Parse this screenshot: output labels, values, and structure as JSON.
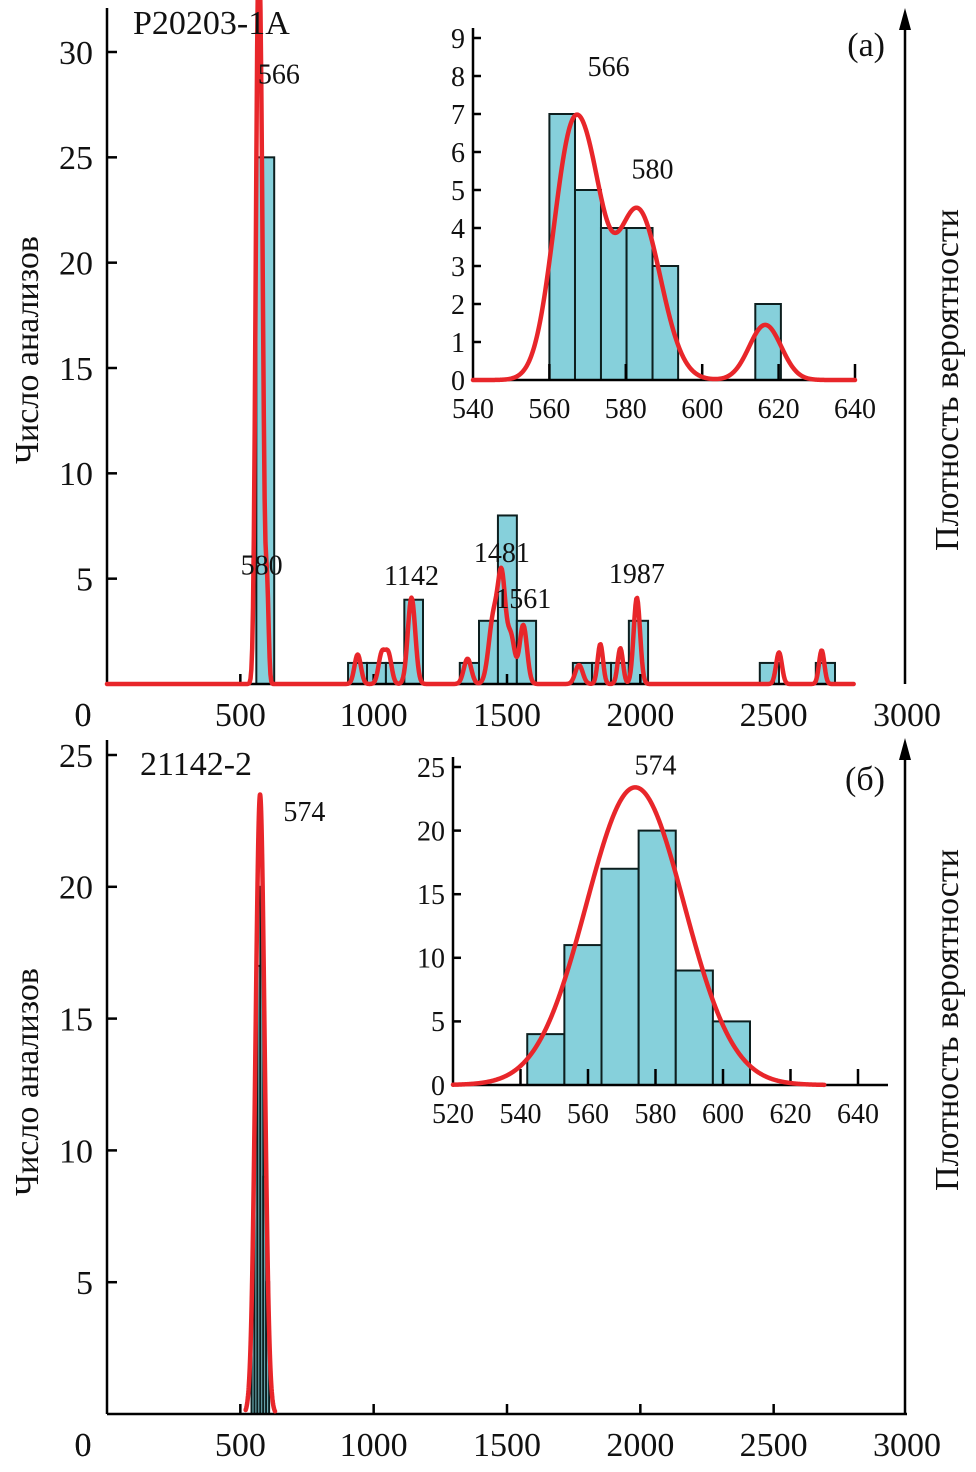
{
  "chart_data": [
    {
      "id": "a-main",
      "type": "bar",
      "panel_label": "",
      "sample": "P20203-1A",
      "xlabel": "",
      "ylabel": "Число анализов",
      "right_label": "Плотность вероятности",
      "xlim": [
        0,
        3000
      ],
      "ylim": [
        0,
        31
      ],
      "xticks": [
        0,
        500,
        1000,
        1500,
        2000,
        2500,
        3000
      ],
      "yticks": [
        5,
        10,
        15,
        20,
        25,
        30
      ],
      "ytick_zero_label": "0",
      "bins": [
        {
          "x0": 560,
          "x1": 627,
          "count": 25
        },
        {
          "x0": 904,
          "x1": 975,
          "count": 1
        },
        {
          "x0": 975,
          "x1": 1046,
          "count": 1
        },
        {
          "x0": 1046,
          "x1": 1115,
          "count": 1
        },
        {
          "x0": 1115,
          "x1": 1185,
          "count": 4
        },
        {
          "x0": 1323,
          "x1": 1395,
          "count": 1
        },
        {
          "x0": 1395,
          "x1": 1466,
          "count": 3
        },
        {
          "x0": 1466,
          "x1": 1537,
          "count": 8
        },
        {
          "x0": 1537,
          "x1": 1609,
          "count": 3
        },
        {
          "x0": 1747,
          "x1": 1819,
          "count": 1
        },
        {
          "x0": 1819,
          "x1": 1890,
          "count": 1
        },
        {
          "x0": 1890,
          "x1": 1957,
          "count": 1
        },
        {
          "x0": 1957,
          "x1": 2029,
          "count": 3
        },
        {
          "x0": 2448,
          "x1": 2520,
          "count": 1
        },
        {
          "x0": 2658,
          "x1": 2730,
          "count": 1
        }
      ],
      "kde_peaks": [
        {
          "x": 566,
          "y": 29.8,
          "w": 9
        },
        {
          "x": 580,
          "y": 17.5,
          "w": 8
        },
        {
          "x": 600,
          "y": 4.6,
          "w": 6
        },
        {
          "x": 940,
          "y": 1.4,
          "w": 12
        },
        {
          "x": 1030,
          "y": 1.4,
          "w": 12
        },
        {
          "x": 1055,
          "y": 1.4,
          "w": 12
        },
        {
          "x": 1142,
          "y": 4.1,
          "w": 14
        },
        {
          "x": 1352,
          "y": 1.2,
          "w": 14
        },
        {
          "x": 1450,
          "y": 3.2,
          "w": 18
        },
        {
          "x": 1481,
          "y": 4.6,
          "w": 14
        },
        {
          "x": 1515,
          "y": 2.2,
          "w": 14
        },
        {
          "x": 1561,
          "y": 2.8,
          "w": 14
        },
        {
          "x": 1770,
          "y": 0.9,
          "w": 14
        },
        {
          "x": 1850,
          "y": 1.9,
          "w": 10
        },
        {
          "x": 1925,
          "y": 1.7,
          "w": 10
        },
        {
          "x": 1987,
          "y": 4.1,
          "w": 12
        },
        {
          "x": 2520,
          "y": 1.5,
          "w": 11
        },
        {
          "x": 2680,
          "y": 1.6,
          "w": 10
        }
      ],
      "kde_range": [
        0,
        2800
      ],
      "annotations": [
        {
          "text": "566",
          "x": 566,
          "y": 28.5
        },
        {
          "text": "580",
          "x": 580,
          "y": 5.2
        },
        {
          "text": "1142",
          "x": 1142,
          "y": 4.7
        },
        {
          "text": "1481",
          "x": 1481,
          "y": 5.8
        },
        {
          "text": "1561",
          "x": 1561,
          "y": 3.6
        },
        {
          "text": "1987",
          "x": 1987,
          "y": 4.8
        }
      ]
    },
    {
      "id": "a-inset",
      "type": "bar",
      "panel_label": "(a)",
      "xlim": [
        540,
        640
      ],
      "ylim": [
        0,
        9
      ],
      "xticks": [
        540,
        560,
        580,
        600,
        620,
        640
      ],
      "yticks": [
        0,
        1,
        2,
        3,
        4,
        5,
        6,
        7,
        8,
        9
      ],
      "bins": [
        {
          "x0": 560,
          "x1": 566.7,
          "count": 7
        },
        {
          "x0": 566.7,
          "x1": 573.5,
          "count": 5
        },
        {
          "x0": 573.5,
          "x1": 580.2,
          "count": 4
        },
        {
          "x0": 580.2,
          "x1": 587,
          "count": 4
        },
        {
          "x0": 587,
          "x1": 593.7,
          "count": 3
        },
        {
          "x0": 593.7,
          "x1": 600.4,
          "count": 0
        },
        {
          "x0": 600.4,
          "x1": 607.1,
          "count": 0
        },
        {
          "x0": 607.1,
          "x1": 613.9,
          "count": 0
        },
        {
          "x0": 613.9,
          "x1": 620.6,
          "count": 2
        }
      ],
      "kde_peaks": [
        {
          "x": 566,
          "y": 6.4,
          "w": 5.0
        },
        {
          "x": 572,
          "y": 1.6,
          "w": 3.5
        },
        {
          "x": 583,
          "y": 4.5,
          "w": 6.0
        },
        {
          "x": 616.5,
          "y": 1.45,
          "w": 4.2
        }
      ],
      "kde_range": [
        540,
        640
      ],
      "annotations": [
        {
          "text": "566",
          "x": 575.5,
          "y": 8.0
        },
        {
          "text": "580",
          "x": 587,
          "y": 5.3
        }
      ]
    },
    {
      "id": "b-main",
      "type": "bar",
      "panel_label": "",
      "sample": "21142-2",
      "xlabel": "",
      "ylabel": "Число анализов",
      "right_label": "Плотность вероятности",
      "xlim": [
        0,
        3000
      ],
      "ylim": [
        0,
        25.5
      ],
      "xticks": [
        0,
        500,
        1000,
        1500,
        2000,
        2500,
        3000
      ],
      "yticks": [
        5,
        10,
        15,
        20,
        25
      ],
      "ytick_zero_label": "0",
      "bins": [
        {
          "x0": 542,
          "x1": 553,
          "count": 4
        },
        {
          "x0": 553,
          "x1": 564,
          "count": 11
        },
        {
          "x0": 564,
          "x1": 575,
          "count": 17
        },
        {
          "x0": 575,
          "x1": 586,
          "count": 20
        },
        {
          "x0": 586,
          "x1": 597,
          "count": 9
        },
        {
          "x0": 597,
          "x1": 608,
          "count": 5
        }
      ],
      "kde_peaks": [
        {
          "x": 574,
          "y": 23.5,
          "w": 17
        }
      ],
      "kde_range": [
        520,
        630
      ],
      "annotations": [
        {
          "text": "574",
          "x": 740,
          "y": 22.5
        }
      ]
    },
    {
      "id": "b-inset",
      "type": "bar",
      "panel_label": "(б)",
      "xlim": [
        520,
        640
      ],
      "ylim": [
        0,
        25
      ],
      "xticks": [
        520,
        540,
        560,
        580,
        600,
        620,
        640
      ],
      "yticks": [
        0,
        5,
        10,
        15,
        20,
        25
      ],
      "bins": [
        {
          "x0": 542,
          "x1": 553,
          "count": 4
        },
        {
          "x0": 553,
          "x1": 564,
          "count": 11
        },
        {
          "x0": 564,
          "x1": 575,
          "count": 17
        },
        {
          "x0": 575,
          "x1": 586,
          "count": 20
        },
        {
          "x0": 586,
          "x1": 597,
          "count": 9
        },
        {
          "x0": 597,
          "x1": 608,
          "count": 5
        }
      ],
      "kde_peaks": [
        {
          "x": 574,
          "y": 23.4,
          "w": 14.5
        }
      ],
      "kde_range": [
        520,
        630
      ],
      "annotations": [
        {
          "text": "574",
          "x": 580,
          "y": 24.4
        }
      ]
    }
  ]
}
